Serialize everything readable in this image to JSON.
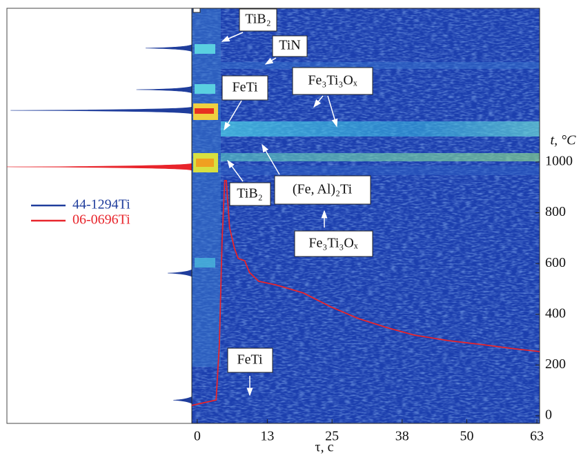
{
  "chart_data": {
    "type": "line",
    "x_label": "τ, c",
    "y_label": "t, °C",
    "xlim": [
      -1,
      63.5
    ],
    "xticks": [
      0,
      13,
      25,
      38,
      50,
      63
    ],
    "ylim": [
      -30,
      1606
    ],
    "yticks": [
      0,
      200,
      400,
      600,
      800,
      1000
    ],
    "color": "#e8242b",
    "x": [
      -1,
      3.5,
      4.1,
      4.6,
      5.1,
      5.4,
      6.0,
      6.9,
      7.6,
      8.8,
      9.7,
      11.4,
      14.6,
      19.7,
      24.8,
      29.9,
      35.1,
      40.2,
      46.6,
      53.0,
      58.1,
      63.5
    ],
    "values": [
      41,
      62,
      280,
      688,
      927,
      927,
      742,
      660,
      620,
      611,
      565,
      530,
      516,
      484,
      429,
      383,
      348,
      318,
      296,
      280,
      266,
      253
    ],
    "reference_patterns": [
      {
        "name": "44-1294Ti",
        "color": "#1f3d9c",
        "positions": [
          9.6,
          19.6,
          24.6,
          63.8,
          94.4
        ],
        "values": [
          25,
          30,
          98,
          13,
          10
        ]
      },
      {
        "name": "06-0696Ti",
        "color": "#e8242b",
        "positions": [
          38.2
        ],
        "values": [
          100
        ]
      }
    ],
    "position_lim": [
      0,
      100
    ],
    "annotations": [
      "TiB₂",
      "TiN",
      "FeTi",
      "Fe₃Ti₃Oₓ",
      "TiB₂",
      "(Fe, Al)₂Ti",
      "Fe₃Ti₃Oₓ",
      "FeTi"
    ]
  }
}
